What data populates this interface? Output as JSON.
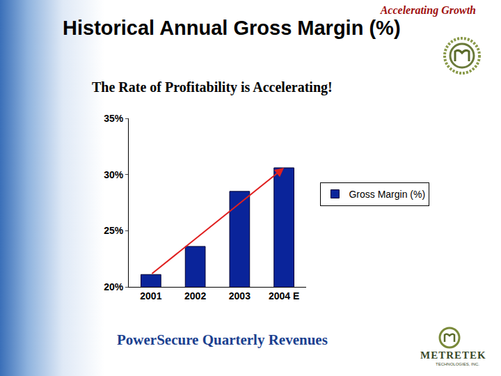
{
  "chart_data": {
    "type": "bar",
    "title": "Historical Annual Gross Margin (%)",
    "subtitle": "The Rate of Profitability is Accelerating!",
    "categories": [
      "2001",
      "2002",
      "2003",
      "2004 E"
    ],
    "series": [
      {
        "name": "Gross Margin (%)",
        "color": "#0a249a",
        "values": [
          21.1,
          23.6,
          28.5,
          30.6
        ]
      }
    ],
    "ylim": [
      20,
      35
    ],
    "yticks": [
      {
        "value": 20,
        "label": "20%"
      },
      {
        "value": 25,
        "label": "25%"
      },
      {
        "value": 30,
        "label": "30%"
      },
      {
        "value": 35,
        "label": "35%"
      }
    ],
    "grid": false,
    "legend": "right"
  },
  "slide": {
    "tagline": "Accelerating Growth",
    "footer": "PowerSecure Quarterly Revenues",
    "logo": {
      "name": "METRETEK",
      "subname": "TECHNOLOGIES, INC."
    }
  }
}
